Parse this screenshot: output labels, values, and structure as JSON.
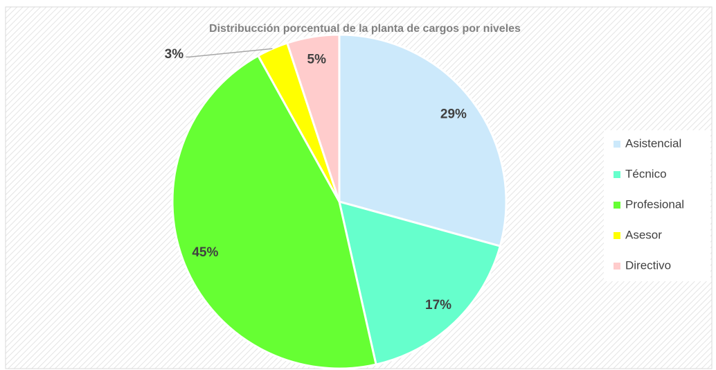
{
  "chart_data": {
    "type": "pie",
    "title": "Distribucción porcentual de la planta de cargos por niveles",
    "categories": [
      "Asistencial",
      "Técnico",
      "Profesional",
      "Asesor",
      "Directivo"
    ],
    "values": [
      29,
      17,
      45,
      3,
      5
    ],
    "value_labels": [
      "29%",
      "17%",
      "45%",
      "3%",
      "5%"
    ],
    "colors": [
      "#cce9fb",
      "#66ffcc",
      "#66ff33",
      "#ffff00",
      "#ffcccc"
    ],
    "legend": "right"
  }
}
